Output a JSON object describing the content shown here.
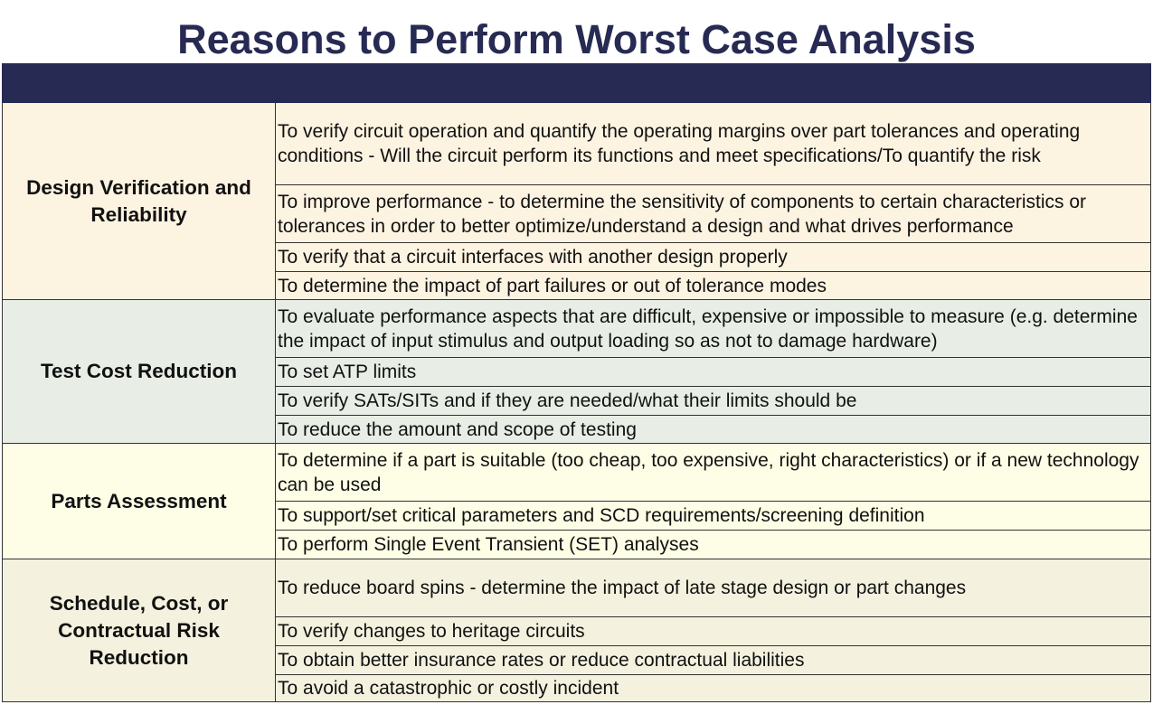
{
  "title": "Reasons to Perform Worst Case Analysis",
  "colors": {
    "header": "#272a52",
    "group_backgrounds": [
      "#fdf3e1",
      "#e8eee5",
      "#fefee6",
      "#f4f1de"
    ]
  },
  "groups": [
    {
      "category": "Design Verification and Reliability",
      "reasons": [
        "To verify circuit operation and quantify the operating margins over part tolerances and operating conditions - Will the circuit perform its functions and meet specifications/To quantify the risk",
        "To improve performance - to determine the sensitivity of components to certain characteristics or tolerances in order to better optimize/understand a design and what drives performance",
        "To verify that a circuit interfaces with another design properly",
        "To determine the impact of part failures or out of tolerance modes"
      ]
    },
    {
      "category": "Test Cost Reduction",
      "reasons": [
        "To evaluate performance aspects that are difficult, expensive or impossible to measure (e.g. determine the impact of input stimulus and output loading so as not to damage hardware)",
        "To set ATP limits",
        "To verify SATs/SITs and if they are needed/what their limits should be",
        "To reduce the amount and scope of testing"
      ]
    },
    {
      "category": "Parts Assessment",
      "reasons": [
        "To determine if a part is suitable (too cheap, too expensive, right characteristics) or if a new technology can be used",
        "To support/set critical parameters and SCD requirements/screening definition",
        "To perform Single Event Transient (SET) analyses"
      ]
    },
    {
      "category": "Schedule, Cost, or Contractual Risk Reduction",
      "reasons": [
        "To reduce board spins - determine the impact of late stage design or part changes",
        "To verify changes to heritage circuits",
        "To obtain better insurance rates or reduce contractual liabilities",
        "To avoid a catastrophic or costly incident"
      ]
    }
  ]
}
